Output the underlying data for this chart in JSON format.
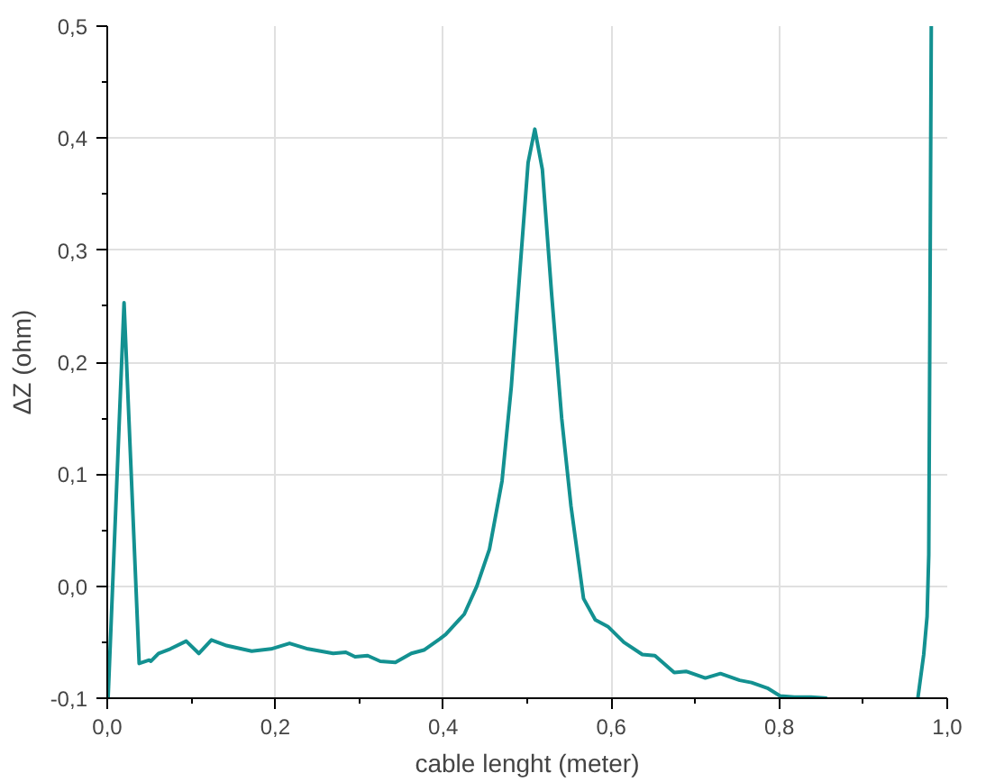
{
  "chart_data": {
    "type": "line",
    "xlabel": "cable lenght (meter)",
    "ylabel": "ΔZ (ohm)",
    "xlim": [
      0,
      1.0
    ],
    "ylim": [
      -0.1,
      0.5
    ],
    "xticks": [
      {
        "value": 0,
        "label": "0,0"
      },
      {
        "value": 0.2,
        "label": "0,2"
      },
      {
        "value": 0.4,
        "label": "0,4"
      },
      {
        "value": 0.6,
        "label": "0,6"
      },
      {
        "value": 0.8,
        "label": "0,8"
      },
      {
        "value": 1.0,
        "label": "1,0"
      }
    ],
    "yticks": [
      {
        "value": -0.1,
        "label": "-0,1"
      },
      {
        "value": 0,
        "label": "0,0"
      },
      {
        "value": 0.1,
        "label": "0,1"
      },
      {
        "value": 0.2,
        "label": "0,2"
      },
      {
        "value": 0.3,
        "label": "0,3"
      },
      {
        "value": 0.4,
        "label": "0,4"
      },
      {
        "value": 0.5,
        "label": "0,5"
      }
    ],
    "grid": true,
    "marker": "none",
    "line_style": "solid",
    "series": [
      {
        "color": "#139191",
        "x": [
          0.001,
          0.02,
          0.038,
          0.05,
          0.052,
          0.061,
          0.075,
          0.094,
          0.109,
          0.124,
          0.142,
          0.172,
          0.195,
          0.217,
          0.239,
          0.269,
          0.284,
          0.295,
          0.31,
          0.325,
          0.343,
          0.362,
          0.377,
          0.396,
          0.403,
          0.425,
          0.44,
          0.455,
          0.47,
          0.481,
          0.492,
          0.501,
          0.509,
          0.518,
          0.529,
          0.541,
          0.552,
          0.567,
          0.581,
          0.596,
          0.615,
          0.637,
          0.652,
          0.675,
          0.689,
          0.712,
          0.73,
          0.753,
          0.767,
          0.786,
          0.801,
          0.818,
          0.838,
          0.857,
          0.9,
          0.965,
          0.972,
          0.976,
          0.978,
          0.981
        ],
        "values": [
          -0.1,
          0.253,
          -0.069,
          -0.066,
          -0.067,
          -0.06,
          -0.056,
          -0.049,
          -0.06,
          -0.048,
          -0.053,
          -0.058,
          -0.056,
          -0.051,
          -0.056,
          -0.06,
          -0.059,
          -0.063,
          -0.062,
          -0.067,
          -0.068,
          -0.06,
          -0.057,
          -0.047,
          -0.043,
          -0.025,
          0.0,
          0.033,
          0.094,
          0.178,
          0.289,
          0.378,
          0.408,
          0.372,
          0.261,
          0.15,
          0.072,
          -0.011,
          -0.03,
          -0.036,
          -0.05,
          -0.061,
          -0.062,
          -0.077,
          -0.076,
          -0.082,
          -0.078,
          -0.084,
          -0.086,
          -0.091,
          -0.098,
          -0.099,
          -0.099,
          -0.1,
          null,
          -0.1,
          -0.061,
          -0.027,
          0.028,
          0.5
        ]
      }
    ]
  }
}
